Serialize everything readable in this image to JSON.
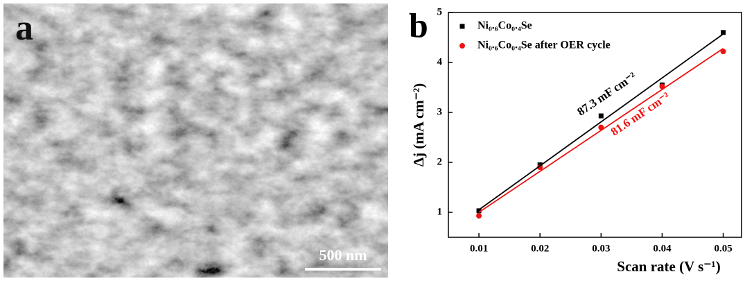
{
  "panel_a": {
    "label": "a",
    "scale_bar": "500 nm"
  },
  "chart_data": {
    "type": "scatter",
    "panel_label": "b",
    "xlabel": "Scan rate (V s⁻¹)",
    "ylabel": "Δj (mA cm⁻²)",
    "xlim": [
      0.005,
      0.053
    ],
    "xticks": [
      0.01,
      0.02,
      0.03,
      0.04,
      0.05
    ],
    "ylim": [
      0.5,
      5
    ],
    "yticks": [
      1,
      2,
      3,
      4,
      5
    ],
    "legend": "top-left",
    "series": [
      {
        "name": "Ni₀.₆Co₀.₄Se",
        "color": "#000000",
        "marker": "square",
        "x": [
          0.01,
          0.02,
          0.03,
          0.04,
          0.05
        ],
        "values": [
          1.03,
          1.95,
          2.93,
          3.55,
          4.6
        ]
      },
      {
        "name": "Ni₀.₆Co₀.₄Se after OER cycle",
        "color": "#ee1111",
        "marker": "circle",
        "x": [
          0.01,
          0.02,
          0.03,
          0.04,
          0.05
        ],
        "values": [
          0.93,
          1.9,
          2.7,
          3.52,
          4.22
        ]
      },
      {
        "color": "#000000",
        "marker": "line",
        "x": [
          0.01,
          0.05
        ],
        "values": [
          1.05,
          4.57
        ]
      },
      {
        "color": "#ee1111",
        "marker": "line",
        "x": [
          0.01,
          0.05
        ],
        "values": [
          1.0,
          4.28
        ]
      }
    ],
    "annotations": [
      {
        "text": "87.3 mF cm⁻²",
        "color": "#000000",
        "x": 0.031,
        "y": 3.35
      },
      {
        "text": "81.6 mF cm⁻²",
        "color": "#ee1111",
        "x": 0.0365,
        "y": 2.95
      }
    ]
  }
}
